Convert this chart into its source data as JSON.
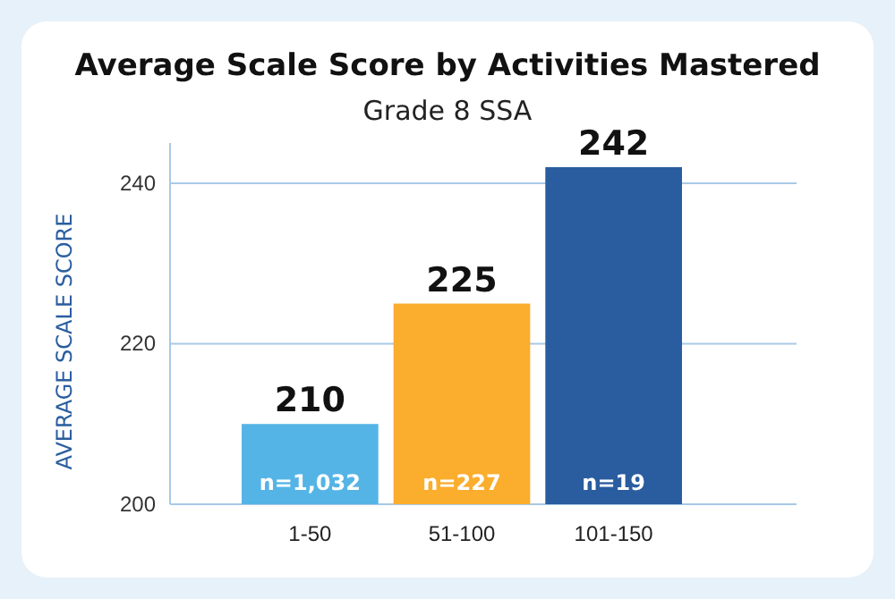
{
  "chart_data": {
    "type": "bar",
    "title": "Average Scale Score by Activities Mastered",
    "subtitle": "Grade 8 SSA",
    "ylabel": "AVERAGE SCALE SCORE",
    "categories": [
      "1-50",
      "51-100",
      "101-150"
    ],
    "values": [
      210,
      225,
      242
    ],
    "colors": [
      "#55b4e6",
      "#fbad2d",
      "#2a5d9f"
    ],
    "ylim": [
      200,
      245
    ],
    "yticks": [
      200,
      220,
      240
    ],
    "grid": "y",
    "data_labels": true,
    "annotations": [
      "n=1,032",
      "n=227",
      "n=19"
    ]
  }
}
